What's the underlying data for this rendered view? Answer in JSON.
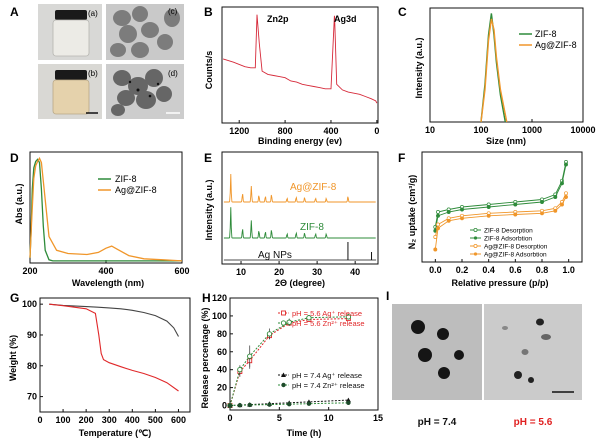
{
  "panel_letters": [
    "A",
    "B",
    "C",
    "D",
    "E",
    "F",
    "G",
    "H",
    "I"
  ],
  "panelA": {
    "labels": [
      "(a)",
      "(b)",
      "(c)",
      "(d)"
    ]
  },
  "panelI": {
    "labels": [
      "pH = 7.4",
      "pH = 5.6"
    ],
    "colors": [
      "#111111",
      "#e02020"
    ]
  },
  "colors": {
    "green": "#2e8b3a",
    "orange": "#f0962a",
    "red": "#e0282a",
    "gray": "#555555",
    "black": "#111111",
    "xrd_red": "#d62a3a"
  },
  "chart_data": [
    {
      "id": "B",
      "type": "line",
      "xlabel": "Binding energy (ev)",
      "ylabel": "Counts/s",
      "xlim": [
        1350,
        0
      ],
      "xticks": [
        1200,
        800,
        400,
        0
      ],
      "annotations": [
        "Zn2p",
        "Ag3d"
      ],
      "series": [
        {
          "name": "",
          "x": [
            1340,
            1250,
            1200,
            1150,
            1100,
            1060,
            1045,
            1025,
            1000,
            950,
            900,
            850,
            800,
            750,
            700,
            650,
            600,
            550,
            500,
            450,
            400,
            370,
            368,
            350,
            300,
            250,
            200,
            150,
            100,
            50,
            10,
            0
          ],
          "y": [
            0.58,
            0.55,
            0.53,
            0.51,
            0.5,
            0.5,
            0.98,
            0.72,
            0.47,
            0.44,
            0.43,
            0.42,
            0.41,
            0.38,
            0.37,
            0.35,
            0.34,
            0.33,
            0.32,
            0.31,
            0.31,
            0.97,
            0.96,
            0.35,
            0.3,
            0.28,
            0.27,
            0.26,
            0.24,
            0.22,
            0.2,
            0.18
          ]
        }
      ]
    },
    {
      "id": "C",
      "type": "line",
      "xscale": "log",
      "xlabel": "Size (nm)",
      "ylabel": "Intensity (a.u.)",
      "xlim": [
        10,
        10000
      ],
      "xticks": [
        "10",
        "100",
        "1000",
        "10000"
      ],
      "legend": "top-right",
      "series": [
        {
          "name": "ZIF-8",
          "x": [
            100,
            120,
            140,
            160,
            180,
            200,
            240,
            300
          ],
          "y": [
            0,
            0.35,
            0.8,
            1.0,
            0.8,
            0.55,
            0.25,
            0
          ]
        },
        {
          "name": "Ag@ZIF-8",
          "x": [
            100,
            120,
            140,
            160,
            180,
            200,
            240,
            320
          ],
          "y": [
            0,
            0.3,
            0.75,
            0.95,
            0.85,
            0.6,
            0.3,
            0
          ]
        }
      ]
    },
    {
      "id": "D",
      "type": "line",
      "xlabel": "Wavelength (nm)",
      "ylabel": "Abs (a.u.)",
      "xlim": [
        200,
        600
      ],
      "xticks": [
        200,
        400,
        600
      ],
      "legend": "top-right",
      "series": [
        {
          "name": "ZIF-8",
          "x": [
            200,
            203,
            206,
            210,
            215,
            220,
            225,
            230,
            235,
            240,
            250,
            260,
            280,
            300,
            600
          ],
          "y": [
            0.05,
            0.3,
            0.7,
            0.9,
            0.96,
            0.98,
            0.95,
            0.7,
            0.35,
            0.12,
            0.03,
            0.02,
            0.02,
            0.02,
            0.02
          ]
        },
        {
          "name": "Ag@ZIF-8",
          "x": [
            200,
            205,
            210,
            215,
            220,
            225,
            230,
            240,
            250,
            270,
            300,
            350,
            380,
            400,
            415,
            430,
            460,
            500,
            550,
            600
          ],
          "y": [
            0.05,
            0.45,
            0.8,
            0.92,
            0.96,
            0.99,
            0.95,
            0.6,
            0.25,
            0.12,
            0.09,
            0.08,
            0.1,
            0.14,
            0.16,
            0.13,
            0.07,
            0.04,
            0.03,
            0.02
          ]
        }
      ]
    },
    {
      "id": "E",
      "type": "line",
      "xlabel": "2Θ (degree)",
      "ylabel": "Intensity (a.u.)",
      "xlim": [
        5,
        46
      ],
      "xticks": [
        10,
        20,
        30,
        40
      ],
      "series": [
        {
          "name": "Ag@ZIF-8",
          "peaks": [
            7.3,
            10.4,
            12.7,
            14.7,
            16.4,
            18.0,
            22.1,
            24.5,
            26.7,
            29.6,
            32.4,
            38.1
          ]
        },
        {
          "name": "ZIF-8",
          "peaks": [
            7.3,
            10.4,
            12.7,
            14.7,
            16.4,
            18.0,
            22.1,
            24.5,
            26.7,
            29.6,
            32.4
          ]
        },
        {
          "name": "Ag NPs",
          "peaks": [
            38.1,
            44.3
          ]
        }
      ]
    },
    {
      "id": "F",
      "type": "line",
      "xlabel": "Relative pressure (p/p)",
      "ylabel": "N₂ uptake (cm³/g)",
      "xlim": [
        -0.1,
        1.1
      ],
      "xticks": [
        0.0,
        0.2,
        0.4,
        0.6,
        0.8,
        1.0
      ],
      "legend": "bottom-right",
      "series": [
        {
          "name": "ZIF-8 Desorption",
          "x": [
            0.0,
            0.02,
            0.1,
            0.2,
            0.4,
            0.6,
            0.8,
            0.9,
            0.95,
            0.98
          ],
          "y": [
            0.48,
            0.6,
            0.62,
            0.64,
            0.66,
            0.68,
            0.7,
            0.74,
            0.85,
            1.0
          ]
        },
        {
          "name": "ZIF-8 Adsorbtion",
          "x": [
            0.0,
            0.02,
            0.1,
            0.2,
            0.4,
            0.6,
            0.8,
            0.9,
            0.95,
            0.98
          ],
          "y": [
            0.45,
            0.57,
            0.6,
            0.62,
            0.64,
            0.66,
            0.68,
            0.72,
            0.83,
            0.98
          ]
        },
        {
          "name": "Ag@ZIF-8 Desorption",
          "x": [
            0.0,
            0.02,
            0.1,
            0.2,
            0.4,
            0.6,
            0.8,
            0.9,
            0.95,
            0.98
          ],
          "y": [
            0.4,
            0.5,
            0.55,
            0.57,
            0.59,
            0.6,
            0.61,
            0.63,
            0.68,
            0.75
          ]
        },
        {
          "name": "Ag@ZIF-8 Adsorbtion",
          "x": [
            0.0,
            0.02,
            0.1,
            0.2,
            0.4,
            0.6,
            0.8,
            0.9,
            0.95,
            0.98
          ],
          "y": [
            0.3,
            0.47,
            0.53,
            0.55,
            0.57,
            0.58,
            0.59,
            0.61,
            0.66,
            0.72
          ]
        }
      ]
    },
    {
      "id": "G",
      "type": "line",
      "xlabel": "Temperature (℃)",
      "ylabel": "Weight (%)",
      "xlim": [
        0,
        650
      ],
      "ylim": [
        65,
        102
      ],
      "xticks": [
        0,
        100,
        200,
        300,
        400,
        500,
        600
      ],
      "yticks": [
        70,
        80,
        90,
        100
      ],
      "series": [
        {
          "name": "",
          "x": [
            40,
            100,
            200,
            250,
            300,
            350,
            400,
            450,
            500,
            550,
            580,
            600
          ],
          "y": [
            100,
            99.6,
            99.2,
            99,
            98.8,
            98.5,
            98,
            97.3,
            96.3,
            94.5,
            92.3,
            89.5
          ]
        },
        {
          "name": "",
          "x": [
            40,
            100,
            200,
            240,
            255,
            265,
            275,
            300,
            350,
            400,
            450,
            500,
            550,
            600
          ],
          "y": [
            100,
            99.5,
            98.5,
            97,
            90,
            84,
            82,
            81,
            79.7,
            78.5,
            77.5,
            76.2,
            74.5,
            71.8
          ]
        }
      ]
    },
    {
      "id": "H",
      "type": "line",
      "xlabel": "Time (h)",
      "ylabel": "Release percentage (%)",
      "xlim": [
        0,
        15
      ],
      "ylim": [
        -5,
        120
      ],
      "xticks": [
        0,
        5,
        10,
        15
      ],
      "yticks": [
        0,
        20,
        40,
        60,
        80,
        100,
        120
      ],
      "series": [
        {
          "name": "pH = 5.6  Ag⁺ release",
          "x": [
            0,
            1,
            2,
            4,
            6,
            8,
            12
          ],
          "y": [
            0,
            38,
            50,
            78,
            92,
            96,
            97
          ]
        },
        {
          "name": "pH = 5.6  Zn²⁺ release",
          "x": [
            0,
            1,
            2,
            4,
            6,
            8,
            12
          ],
          "y": [
            0,
            40,
            55,
            80,
            93,
            98,
            99
          ]
        },
        {
          "name": "pH = 7.4  Ag⁺ release",
          "x": [
            0,
            1,
            2,
            4,
            6,
            8,
            12
          ],
          "y": [
            0,
            0.5,
            1,
            2,
            3,
            4,
            6
          ]
        },
        {
          "name": "pH = 7.4  Zn²⁺ release",
          "x": [
            0,
            1,
            2,
            4,
            6,
            8,
            12
          ],
          "y": [
            0,
            0.3,
            0.6,
            1,
            1.5,
            2,
            3
          ]
        }
      ]
    }
  ]
}
